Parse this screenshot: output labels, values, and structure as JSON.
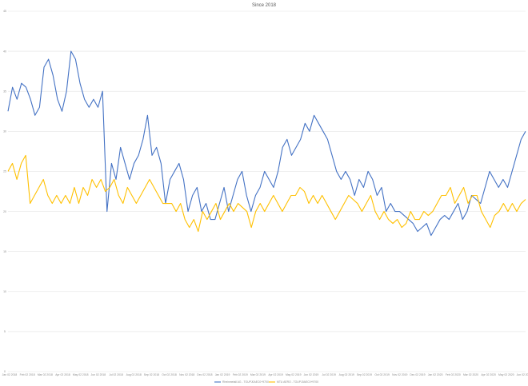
{
  "chart_data": {
    "type": "line",
    "title": "Since 2018",
    "xlabel": "",
    "ylabel": "",
    "ylim": [
      0,
      45
    ],
    "y_ticks": [
      "0",
      "5",
      "10",
      "15",
      "20",
      "25",
      "30",
      "35",
      "40",
      "45"
    ],
    "x_ticks": [
      "Jan 02 2018",
      "Feb 02 2018",
      "Mar 02 2018",
      "Apr 02 2018",
      "May 02 2018",
      "Jun 02 2018",
      "Jul 02 2018",
      "Aug 02 2018",
      "Sep 02 2018",
      "Oct 02 2018",
      "Nov 02 2018",
      "Dec 02 2018",
      "Jan 02 2019",
      "Feb 02 2019",
      "Mar 02 2019",
      "Apr 02 2019",
      "May 02 2019",
      "Jun 02 2019",
      "Jul 02 2019",
      "Aug 02 2019",
      "Sep 02 2019",
      "Oct 02 2019",
      "Nov 02 2019",
      "Dec 02 2019",
      "Jan 02 2020",
      "Feb 02 2020",
      "Mar 02 2020",
      "Apr 02 2020",
      "May 02 2020",
      "Jun 02 2020"
    ],
    "grid": true,
    "legend_position": "bottom",
    "series": [
      {
        "name": "Rheinmetall AG - TOUPJ0AEC0+9700",
        "color": "#4472c4",
        "values": [
          32.5,
          35.5,
          34,
          36,
          35.5,
          34,
          32,
          33,
          38,
          39,
          37,
          34,
          32.5,
          35,
          40,
          39,
          36,
          34,
          33,
          34,
          33,
          35,
          20,
          26,
          24,
          28,
          26,
          24,
          26,
          27,
          29,
          32,
          27,
          28,
          26,
          21,
          24,
          25,
          26,
          24,
          20,
          22,
          23,
          20,
          21,
          19,
          19,
          21,
          23,
          20,
          22,
          24,
          25,
          22,
          20,
          22,
          23,
          25,
          24,
          23,
          25,
          28,
          29,
          27,
          28,
          29,
          31,
          30,
          32,
          31,
          30,
          29,
          27,
          25,
          24,
          25,
          24,
          22,
          24,
          23,
          25,
          24,
          22,
          23,
          20,
          21,
          20,
          20,
          19.5,
          19,
          18.5,
          17.5,
          18,
          18.5,
          17,
          18,
          19,
          19.5,
          19,
          20,
          21,
          19,
          20,
          22,
          21.5,
          21,
          23,
          25,
          24,
          23,
          24,
          23,
          25,
          27,
          29,
          30
        ]
      },
      {
        "name": "MTU AERO - TOUPJ0AEC0+9700",
        "color": "#ffc000",
        "values": [
          25,
          26,
          24,
          26,
          27,
          21,
          22,
          23,
          24,
          22,
          21,
          22,
          21,
          22,
          21,
          23,
          21,
          23,
          22,
          24,
          23,
          24,
          22.5,
          23,
          24,
          22,
          21,
          23,
          22,
          21,
          22,
          23,
          24,
          23,
          22,
          21,
          21,
          21,
          20,
          21,
          19,
          18,
          19,
          17.5,
          20,
          19,
          20,
          21,
          19,
          20,
          21,
          20,
          21,
          20.5,
          20,
          18,
          20,
          21,
          20,
          21,
          22,
          21,
          20,
          21,
          22,
          22,
          23,
          22.5,
          21,
          22,
          21,
          22,
          21,
          20,
          19,
          20,
          21,
          22,
          21.5,
          21,
          20,
          21,
          22,
          20,
          19,
          20,
          19,
          18.5,
          19,
          18,
          18.5,
          20,
          19,
          19,
          20,
          19.5,
          20,
          21,
          22,
          22,
          23,
          21,
          22,
          23,
          21,
          22,
          22,
          20,
          19,
          18,
          19.5,
          20,
          21,
          20,
          21,
          20,
          21,
          21.5
        ]
      }
    ]
  }
}
